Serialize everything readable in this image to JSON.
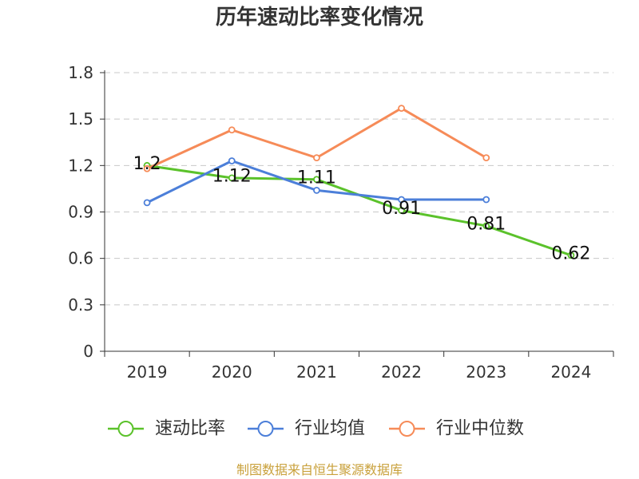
{
  "source_note": "制图数据来自恒生聚源数据库",
  "source_note_color": "#c9a13c",
  "chart_data": {
    "type": "line",
    "title": "历年速动比率变化情况",
    "categories": [
      "2019",
      "2020",
      "2021",
      "2022",
      "2023",
      "2024"
    ],
    "ylim": [
      0,
      1.8
    ],
    "yticks": [
      0,
      0.3,
      0.6,
      0.9,
      1.2,
      1.5,
      1.8
    ],
    "ytick_labels": [
      "0",
      "0.3",
      "0.6",
      "0.9",
      "1.2",
      "1.5",
      "1.8"
    ],
    "grid": true,
    "legend_position": "bottom",
    "series": [
      {
        "name": "速动比率",
        "color": "#5bc22b",
        "values": [
          1.2,
          1.12,
          1.11,
          0.91,
          0.81,
          0.62
        ],
        "data_labels": [
          "1.2",
          "1.12",
          "1.11",
          "0.91",
          "0.81",
          "0.62"
        ]
      },
      {
        "name": "行业均值",
        "color": "#4c7fd9",
        "values": [
          0.96,
          1.23,
          1.04,
          0.98,
          0.98,
          null
        ]
      },
      {
        "name": "行业中位数",
        "color": "#f68b58",
        "values": [
          1.18,
          1.43,
          1.25,
          1.57,
          1.25,
          null
        ]
      }
    ]
  }
}
